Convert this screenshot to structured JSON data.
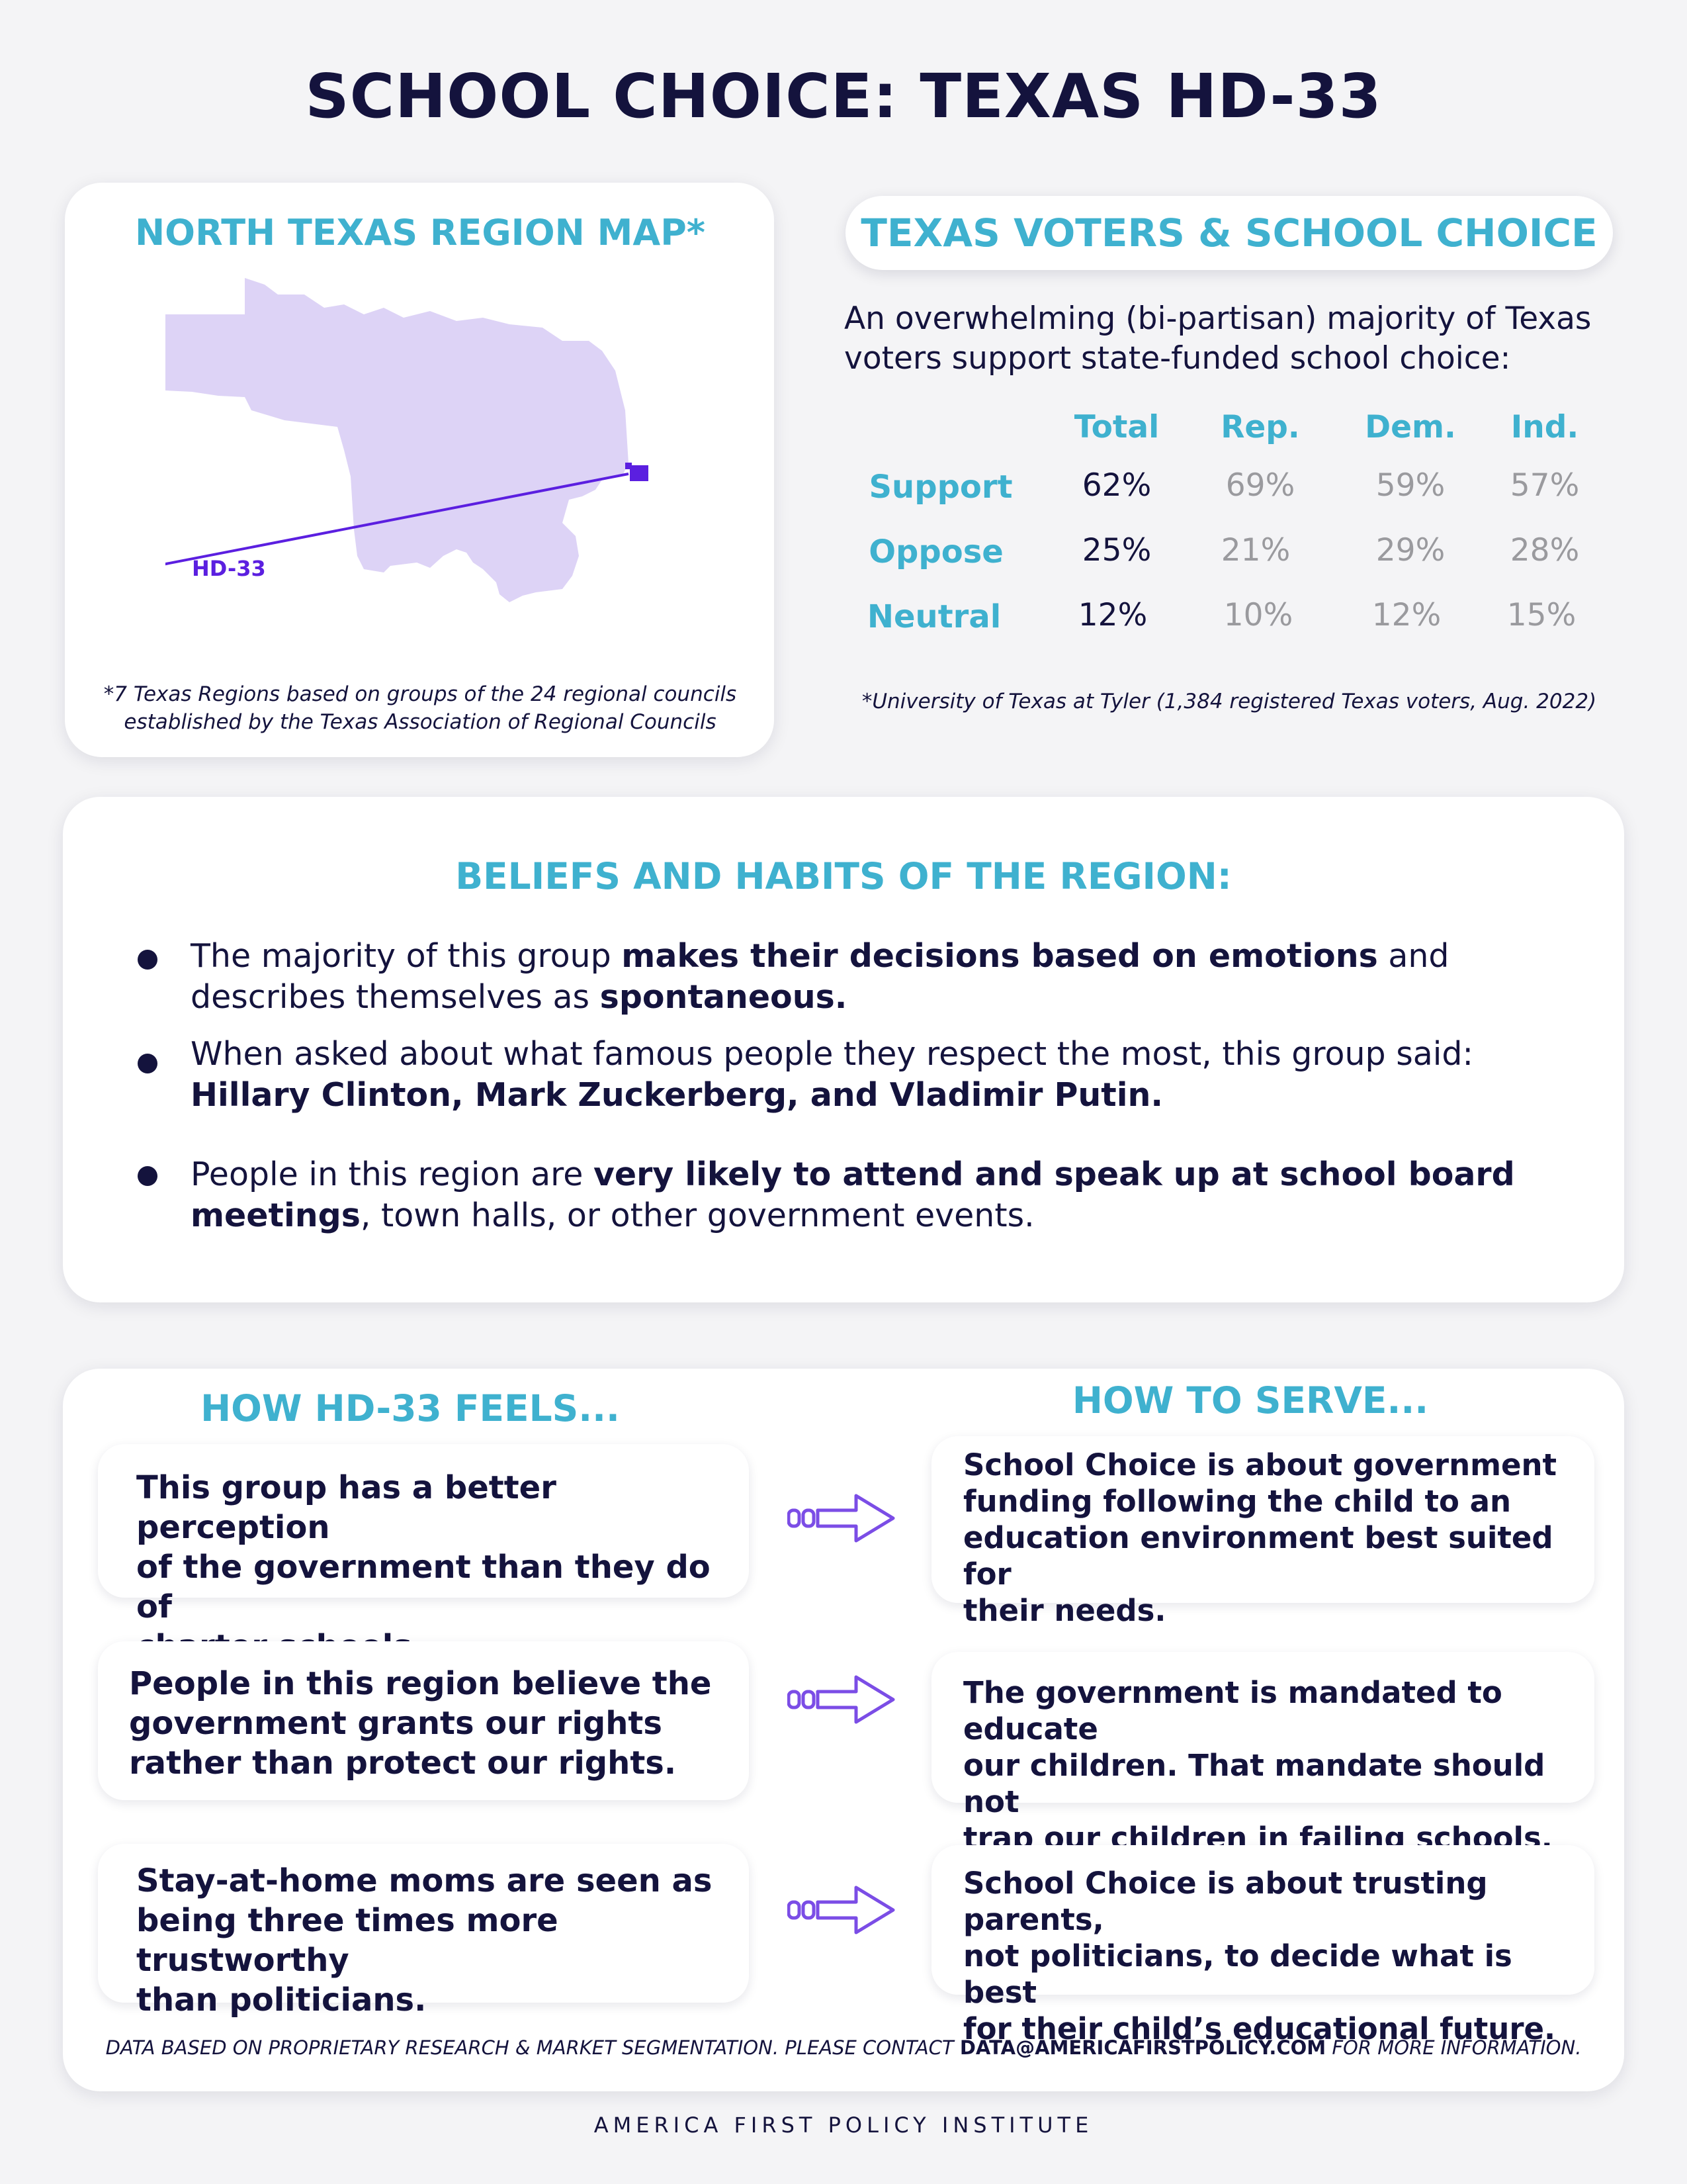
{
  "title": "SCHOOL CHOICE: TEXAS HD-33",
  "map_card": {
    "title": "NORTH TEXAS REGION MAP*",
    "district_label": "HD-33",
    "footnote_line1": "*7 Texas Regions based on groups of the 24 regional councils",
    "footnote_line2": "established by the Texas Association of Regional Councils",
    "colors": {
      "region": "#ddd3f6",
      "district": "#5b1fe0"
    }
  },
  "voters": {
    "title": "TEXAS VOTERS & SCHOOL CHOICE",
    "intro_line1": "An overwhelming (bi-partisan) majority of Texas",
    "intro_line2": "voters support state-funded school choice:",
    "columns": [
      "Total",
      "Rep.",
      "Dem.",
      "Ind."
    ],
    "rows": [
      {
        "label": "Support",
        "values": [
          "62%",
          "69%",
          "59%",
          "57%"
        ]
      },
      {
        "label": "Oppose",
        "values": [
          "25%",
          "21%",
          "29%",
          "28%"
        ]
      },
      {
        "label": "Neutral",
        "values": [
          "12%",
          "10%",
          "12%",
          "15%"
        ]
      }
    ],
    "source": "*University of Texas at Tyler (1,384 registered Texas voters, Aug. 2022)"
  },
  "beliefs": {
    "title": "BELIEFS AND HABITS OF THE REGION:",
    "b1_t1": "The majority of this group ",
    "b1_b1": "makes their decisions based on emotions",
    "b1_t2": " and",
    "b1_t3": "describes themselves as ",
    "b1_b2": "spontaneous.",
    "b2_t1": "When asked about what famous people they respect the most, this group said:",
    "b2_b1": "Hillary Clinton, Mark Zuckerberg, and Vladimir Putin.",
    "b3_t1": "People in this region are ",
    "b3_b1": "very likely to attend and speak up at school board",
    "b3_b2": "meetings",
    "b3_t2": ", town halls, or other government events."
  },
  "feels": {
    "title": "HOW HD-33 FEELS...",
    "items": [
      {
        "l1": "This group has a better perception",
        "l2": "of the government than they do of",
        "l3": "charter schools."
      },
      {
        "l1": "People in this region believe the",
        "l2": "government grants our rights",
        "l3": "rather than protect our rights."
      },
      {
        "l1": "Stay-at-home moms are seen as",
        "l2": "being three times more trustworthy",
        "l3": "than politicians."
      }
    ]
  },
  "serve": {
    "title": "HOW TO SERVE...",
    "items": [
      {
        "l1": "School Choice is about government",
        "l2": "funding following the child to an",
        "l3": "education environment best suited for",
        "l4": "their needs."
      },
      {
        "l1": "The government is mandated to educate",
        "l2": "our children. That mandate should not",
        "l3": "trap our children in failing schools."
      },
      {
        "l1": "School Choice is about trusting parents,",
        "l2": "not politicians, to decide what is best",
        "l3": "for their child’s educational future."
      }
    ],
    "arrow_color": "#7b4de6"
  },
  "footer": {
    "note_prefix": "DATA BASED ON PROPRIETARY RESEARCH & MARKET SEGMENTATION. PLEASE CONTACT ",
    "email": "DATA@AMERICAFIRSTPOLICY.COM",
    "note_suffix": " FOR MORE INFORMATION.",
    "organization": "AMERICA FIRST POLICY INSTITUTE"
  }
}
